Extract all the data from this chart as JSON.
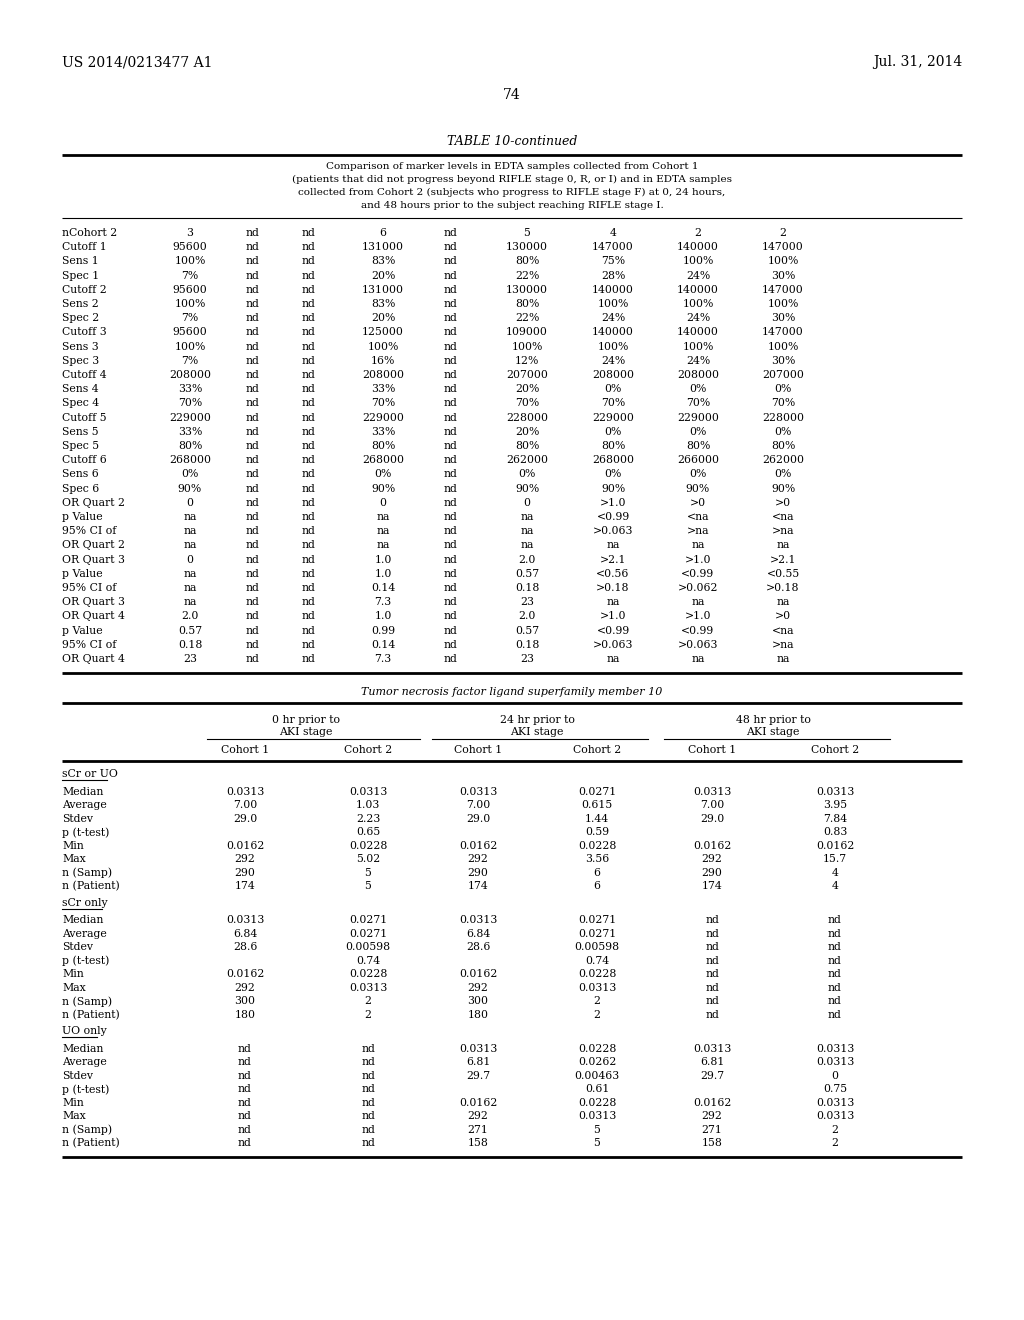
{
  "header_left": "US 2014/0213477 A1",
  "header_right": "Jul. 31, 2014",
  "page_number": "74",
  "table_title": "TABLE 10-continued",
  "table_caption_lines": [
    "Comparison of marker levels in EDTA samples collected from Cohort 1",
    "(patients that did not progress beyond RIFLE stage 0, R, or I) and in EDTA samples",
    "collected from Cohort 2 (subjects who progress to RIFLE stage F) at 0, 24 hours,",
    "and 48 hours prior to the subject reaching RIFLE stage I."
  ],
  "top_table_rows": [
    [
      "nCohort 2",
      "3",
      "nd",
      "nd",
      "6",
      "nd",
      "5",
      "4",
      "2",
      "2"
    ],
    [
      "Cutoff 1",
      "95600",
      "nd",
      "nd",
      "131000",
      "nd",
      "130000",
      "147000",
      "140000",
      "147000"
    ],
    [
      "Sens 1",
      "100%",
      "nd",
      "nd",
      "83%",
      "nd",
      "80%",
      "75%",
      "100%",
      "100%"
    ],
    [
      "Spec 1",
      "7%",
      "nd",
      "nd",
      "20%",
      "nd",
      "22%",
      "28%",
      "24%",
      "30%"
    ],
    [
      "Cutoff 2",
      "95600",
      "nd",
      "nd",
      "131000",
      "nd",
      "130000",
      "140000",
      "140000",
      "147000"
    ],
    [
      "Sens 2",
      "100%",
      "nd",
      "nd",
      "83%",
      "nd",
      "80%",
      "100%",
      "100%",
      "100%"
    ],
    [
      "Spec 2",
      "7%",
      "nd",
      "nd",
      "20%",
      "nd",
      "22%",
      "24%",
      "24%",
      "30%"
    ],
    [
      "Cutoff 3",
      "95600",
      "nd",
      "nd",
      "125000",
      "nd",
      "109000",
      "140000",
      "140000",
      "147000"
    ],
    [
      "Sens 3",
      "100%",
      "nd",
      "nd",
      "100%",
      "nd",
      "100%",
      "100%",
      "100%",
      "100%"
    ],
    [
      "Spec 3",
      "7%",
      "nd",
      "nd",
      "16%",
      "nd",
      "12%",
      "24%",
      "24%",
      "30%"
    ],
    [
      "Cutoff 4",
      "208000",
      "nd",
      "nd",
      "208000",
      "nd",
      "207000",
      "208000",
      "208000",
      "207000"
    ],
    [
      "Sens 4",
      "33%",
      "nd",
      "nd",
      "33%",
      "nd",
      "20%",
      "0%",
      "0%",
      "0%"
    ],
    [
      "Spec 4",
      "70%",
      "nd",
      "nd",
      "70%",
      "nd",
      "70%",
      "70%",
      "70%",
      "70%"
    ],
    [
      "Cutoff 5",
      "229000",
      "nd",
      "nd",
      "229000",
      "nd",
      "228000",
      "229000",
      "229000",
      "228000"
    ],
    [
      "Sens 5",
      "33%",
      "nd",
      "nd",
      "33%",
      "nd",
      "20%",
      "0%",
      "0%",
      "0%"
    ],
    [
      "Spec 5",
      "80%",
      "nd",
      "nd",
      "80%",
      "nd",
      "80%",
      "80%",
      "80%",
      "80%"
    ],
    [
      "Cutoff 6",
      "268000",
      "nd",
      "nd",
      "268000",
      "nd",
      "262000",
      "268000",
      "266000",
      "262000"
    ],
    [
      "Sens 6",
      "0%",
      "nd",
      "nd",
      "0%",
      "nd",
      "0%",
      "0%",
      "0%",
      "0%"
    ],
    [
      "Spec 6",
      "90%",
      "nd",
      "nd",
      "90%",
      "nd",
      "90%",
      "90%",
      "90%",
      "90%"
    ],
    [
      "OR Quart 2",
      "0",
      "nd",
      "nd",
      "0",
      "nd",
      "0",
      ">1.0",
      ">0",
      ">0"
    ],
    [
      "p Value",
      "na",
      "nd",
      "nd",
      "na",
      "nd",
      "na",
      "<0.99",
      "<na",
      "<na"
    ],
    [
      "95% CI of",
      "na",
      "nd",
      "nd",
      "na",
      "nd",
      "na",
      ">0.063",
      ">na",
      ">na"
    ],
    [
      "OR Quart 2",
      "na",
      "nd",
      "nd",
      "na",
      "nd",
      "na",
      "na",
      "na",
      "na"
    ],
    [
      "OR Quart 3",
      "0",
      "nd",
      "nd",
      "1.0",
      "nd",
      "2.0",
      ">2.1",
      ">1.0",
      ">2.1"
    ],
    [
      "p Value",
      "na",
      "nd",
      "nd",
      "1.0",
      "nd",
      "0.57",
      "<0.56",
      "<0.99",
      "<0.55"
    ],
    [
      "95% CI of",
      "na",
      "nd",
      "nd",
      "0.14",
      "nd",
      "0.18",
      ">0.18",
      ">0.062",
      ">0.18"
    ],
    [
      "OR Quart 3",
      "na",
      "nd",
      "nd",
      "7.3",
      "nd",
      "23",
      "na",
      "na",
      "na"
    ],
    [
      "OR Quart 4",
      "2.0",
      "nd",
      "nd",
      "1.0",
      "nd",
      "2.0",
      ">1.0",
      ">1.0",
      ">0"
    ],
    [
      "p Value",
      "0.57",
      "nd",
      "nd",
      "0.99",
      "nd",
      "0.57",
      "<0.99",
      "<0.99",
      "<na"
    ],
    [
      "95% CI of",
      "0.18",
      "nd",
      "nd",
      "0.14",
      "nd",
      "0.18",
      ">0.063",
      ">0.063",
      ">na"
    ],
    [
      "OR Quart 4",
      "23",
      "nd",
      "nd",
      "7.3",
      "nd",
      "23",
      "na",
      "na",
      "na"
    ]
  ],
  "bottom_table_title": "Tumor necrosis factor ligand superfamily member 10",
  "col_group_labels": [
    "0 hr prior to\nAKI stage",
    "24 hr prior to\nAKI stage",
    "48 hr prior to\nAKI stage"
  ],
  "subcol_labels": [
    "Cohort 1",
    "Cohort 2",
    "Cohort 1",
    "Cohort 2",
    "Cohort 1",
    "Cohort 2"
  ],
  "sections": [
    {
      "label": "sCr or UO",
      "rows": [
        [
          "Median",
          "0.0313",
          "0.0313",
          "0.0313",
          "0.0271",
          "0.0313",
          "0.0313"
        ],
        [
          "Average",
          "7.00",
          "1.03",
          "7.00",
          "0.615",
          "7.00",
          "3.95"
        ],
        [
          "Stdev",
          "29.0",
          "2.23",
          "29.0",
          "1.44",
          "29.0",
          "7.84"
        ],
        [
          "p (t-test)",
          "",
          "0.65",
          "",
          "0.59",
          "",
          "0.83"
        ],
        [
          "Min",
          "0.0162",
          "0.0228",
          "0.0162",
          "0.0228",
          "0.0162",
          "0.0162"
        ],
        [
          "Max",
          "292",
          "5.02",
          "292",
          "3.56",
          "292",
          "15.7"
        ],
        [
          "n (Samp)",
          "290",
          "5",
          "290",
          "6",
          "290",
          "4"
        ],
        [
          "n (Patient)",
          "174",
          "5",
          "174",
          "6",
          "174",
          "4"
        ]
      ]
    },
    {
      "label": "sCr only",
      "rows": [
        [
          "Median",
          "0.0313",
          "0.0271",
          "0.0313",
          "0.0271",
          "nd",
          "nd"
        ],
        [
          "Average",
          "6.84",
          "0.0271",
          "6.84",
          "0.0271",
          "nd",
          "nd"
        ],
        [
          "Stdev",
          "28.6",
          "0.00598",
          "28.6",
          "0.00598",
          "nd",
          "nd"
        ],
        [
          "p (t-test)",
          "",
          "0.74",
          "",
          "0.74",
          "nd",
          "nd"
        ],
        [
          "Min",
          "0.0162",
          "0.0228",
          "0.0162",
          "0.0228",
          "nd",
          "nd"
        ],
        [
          "Max",
          "292",
          "0.0313",
          "292",
          "0.0313",
          "nd",
          "nd"
        ],
        [
          "n (Samp)",
          "300",
          "2",
          "300",
          "2",
          "nd",
          "nd"
        ],
        [
          "n (Patient)",
          "180",
          "2",
          "180",
          "2",
          "nd",
          "nd"
        ]
      ]
    },
    {
      "label": "UO only",
      "rows": [
        [
          "Median",
          "nd",
          "nd",
          "0.0313",
          "0.0228",
          "0.0313",
          "0.0313"
        ],
        [
          "Average",
          "nd",
          "nd",
          "6.81",
          "0.0262",
          "6.81",
          "0.0313"
        ],
        [
          "Stdev",
          "nd",
          "nd",
          "29.7",
          "0.00463",
          "29.7",
          "0"
        ],
        [
          "p (t-test)",
          "nd",
          "nd",
          "",
          "0.61",
          "",
          "0.75"
        ],
        [
          "Min",
          "nd",
          "nd",
          "0.0162",
          "0.0228",
          "0.0162",
          "0.0313"
        ],
        [
          "Max",
          "nd",
          "nd",
          "292",
          "0.0313",
          "292",
          "0.0313"
        ],
        [
          "n (Samp)",
          "nd",
          "nd",
          "271",
          "5",
          "271",
          "2"
        ],
        [
          "n (Patient)",
          "nd",
          "nd",
          "158",
          "5",
          "158",
          "2"
        ]
      ]
    }
  ]
}
